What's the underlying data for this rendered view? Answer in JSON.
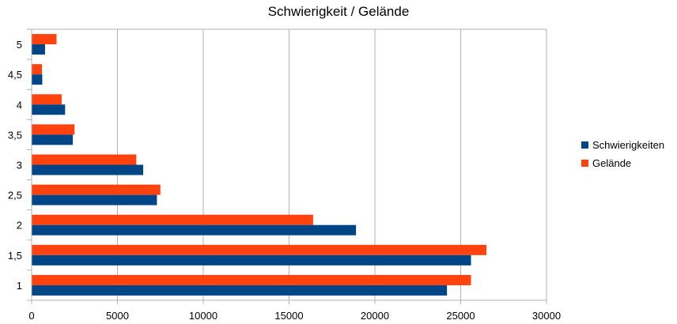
{
  "chart_data": {
    "type": "bar",
    "orientation": "horizontal",
    "title": "Schwierigkeit / Gelände",
    "xlabel": "",
    "ylabel": "",
    "categories": [
      "1",
      "1,5",
      "2",
      "2,5",
      "3",
      "3,5",
      "4",
      "4,5",
      "5"
    ],
    "series": [
      {
        "name": "Schwierigkeiten",
        "color": "#004586",
        "values": [
          24200,
          25600,
          18900,
          7300,
          6500,
          2400,
          1950,
          620,
          780
        ]
      },
      {
        "name": "Gelände",
        "color": "#ff420e",
        "values": [
          25600,
          26500,
          16400,
          7500,
          6100,
          2500,
          1750,
          600,
          1450
        ]
      }
    ],
    "xlim": [
      0,
      30000
    ],
    "xticks": [
      "0",
      "5000",
      "10000",
      "15000",
      "20000",
      "25000",
      "30000"
    ],
    "grid": "vertical",
    "legend_position": "right"
  }
}
